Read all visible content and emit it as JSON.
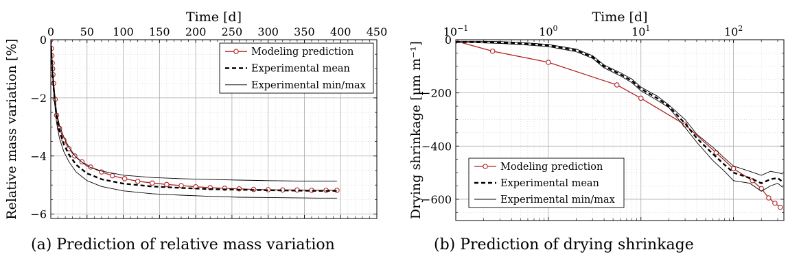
{
  "captions": {
    "a": "(a) Prediction of relative mass variation",
    "b": "(b) Prediction of drying shrinkage"
  },
  "colors": {
    "model": "#b22222",
    "experimental": "#000000",
    "grid": "#a9a9a9"
  },
  "legend_labels": [
    "Modeling prediction",
    "Experimental mean",
    "Experimental min/max"
  ],
  "chart_data": [
    {
      "type": "line",
      "xlabel": "Time [d]",
      "ylabel": "Relative mass variation [%]",
      "x_axis_position": "top",
      "xlim": [
        0,
        450
      ],
      "ylim": [
        -6.15,
        0
      ],
      "xticks": [
        0,
        50,
        100,
        150,
        200,
        250,
        300,
        350,
        400,
        450
      ],
      "yticks": [
        0,
        -2,
        -4,
        -6
      ],
      "ytick_labels": [
        "0",
        "−2",
        "−4",
        "−6"
      ],
      "grid": true,
      "legend_position": "top-right",
      "series": [
        {
          "name": "Modeling prediction",
          "style": "red line with circle markers",
          "x": [
            0,
            1,
            1.5,
            2,
            2.5,
            3,
            4,
            6,
            8,
            12,
            18,
            25,
            33,
            43,
            55,
            70,
            85,
            102,
            120,
            140,
            160,
            180,
            200,
            220,
            240,
            260,
            280,
            300,
            320,
            340,
            360,
            380,
            395
          ],
          "y": [
            0,
            -0.3,
            -0.55,
            -0.8,
            -1.0,
            -1.2,
            -1.5,
            -2.05,
            -2.6,
            -3.05,
            -3.45,
            -3.75,
            -4.0,
            -4.2,
            -4.38,
            -4.55,
            -4.68,
            -4.78,
            -4.87,
            -4.93,
            -4.98,
            -5.02,
            -5.06,
            -5.09,
            -5.11,
            -5.13,
            -5.15,
            -5.16,
            -5.17,
            -5.17,
            -5.18,
            -5.18,
            -5.18
          ]
        },
        {
          "name": "Experimental mean",
          "style": "black dashed",
          "x": [
            0,
            2,
            4,
            8,
            12,
            18,
            25,
            35,
            50,
            70,
            100,
            140,
            180,
            220,
            260,
            300,
            340,
            370,
            395
          ],
          "y": [
            0,
            -1.0,
            -1.7,
            -2.65,
            -3.15,
            -3.6,
            -3.95,
            -4.3,
            -4.6,
            -4.8,
            -4.95,
            -5.05,
            -5.1,
            -5.14,
            -5.16,
            -5.18,
            -5.19,
            -5.2,
            -5.2
          ]
        },
        {
          "name": "Experimental min",
          "style": "black thin",
          "x": [
            0,
            2,
            4,
            8,
            12,
            18,
            25,
            35,
            50,
            70,
            100,
            140,
            180,
            220,
            260,
            300,
            340,
            370,
            395
          ],
          "y": [
            0,
            -1.05,
            -1.85,
            -2.85,
            -3.4,
            -3.85,
            -4.2,
            -4.55,
            -4.85,
            -5.05,
            -5.2,
            -5.3,
            -5.35,
            -5.39,
            -5.42,
            -5.43,
            -5.44,
            -5.45,
            -5.45
          ]
        },
        {
          "name": "Experimental max",
          "style": "black thin",
          "x": [
            0,
            2,
            4,
            8,
            12,
            18,
            25,
            35,
            50,
            70,
            100,
            140,
            180,
            220,
            260,
            300,
            340,
            370,
            395
          ],
          "y": [
            0,
            -0.9,
            -1.55,
            -2.5,
            -2.95,
            -3.35,
            -3.7,
            -4.05,
            -4.35,
            -4.52,
            -4.66,
            -4.74,
            -4.78,
            -4.81,
            -4.83,
            -4.85,
            -4.86,
            -4.86,
            -4.86
          ]
        }
      ]
    },
    {
      "type": "line",
      "xlabel": "Time [d]",
      "ylabel": "Drying shrinkage [µm m⁻¹]",
      "x_axis_position": "top",
      "xscale": "log",
      "xlim": [
        0.1,
        350
      ],
      "ylim": [
        -680,
        0
      ],
      "xticks": [
        0.1,
        1,
        10,
        100
      ],
      "ytick_values": [
        0,
        -200,
        -400,
        -600
      ],
      "ytick_labels": [
        "0",
        "−200",
        "−400",
        "−600"
      ],
      "grid": true,
      "legend_position": "bottom-left",
      "series": [
        {
          "name": "Modeling prediction",
          "style": "red line with circle markers",
          "x": [
            0.1,
            0.25,
            1,
            5.5,
            10,
            30,
            65,
            100,
            160,
            200,
            240,
            280,
            320
          ],
          "y": [
            -5,
            -43,
            -85,
            -170,
            -220,
            -320,
            -425,
            -485,
            -530,
            -560,
            -595,
            -615,
            -630
          ]
        },
        {
          "name": "Experimental mean",
          "style": "black dashed",
          "x": [
            0.1,
            0.2,
            0.3,
            0.5,
            1,
            2,
            3,
            4,
            6,
            8,
            10,
            15,
            20,
            30,
            40,
            60,
            80,
            100,
            150,
            200,
            250,
            300,
            340
          ],
          "y": [
            -8,
            -9,
            -10,
            -14,
            -22,
            -40,
            -65,
            -100,
            -130,
            -155,
            -185,
            -220,
            -250,
            -315,
            -370,
            -430,
            -470,
            -500,
            -520,
            -540,
            -525,
            -520,
            -535
          ]
        },
        {
          "name": "Experimental min",
          "style": "black thin",
          "x": [
            0.1,
            0.2,
            0.3,
            0.5,
            1,
            2,
            3,
            4,
            6,
            8,
            10,
            15,
            20,
            30,
            40,
            60,
            80,
            100,
            150,
            200,
            250,
            300,
            340
          ],
          "y": [
            -10,
            -12,
            -14,
            -18,
            -26,
            -45,
            -70,
            -106,
            -136,
            -162,
            -192,
            -228,
            -255,
            -330,
            -385,
            -455,
            -495,
            -530,
            -540,
            -570,
            -550,
            -540,
            -555
          ]
        },
        {
          "name": "Experimental max",
          "style": "black thin",
          "x": [
            0.1,
            0.2,
            0.3,
            0.5,
            1,
            2,
            3,
            4,
            6,
            8,
            10,
            15,
            20,
            30,
            40,
            60,
            80,
            100,
            150,
            200,
            250,
            300,
            340
          ],
          "y": [
            -6,
            -6,
            -7,
            -10,
            -18,
            -35,
            -60,
            -95,
            -124,
            -148,
            -178,
            -212,
            -245,
            -300,
            -355,
            -405,
            -445,
            -475,
            -495,
            -510,
            -495,
            -500,
            -505
          ]
        }
      ]
    }
  ]
}
